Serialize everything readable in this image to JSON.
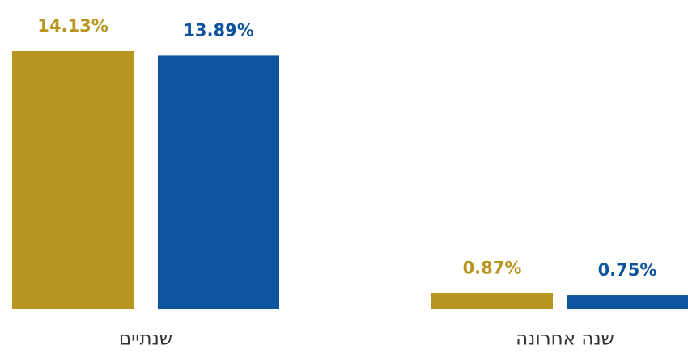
{
  "chart_data": {
    "type": "bar",
    "categories": [
      "שנתיים",
      "שנה אחרונה"
    ],
    "series": [
      {
        "color": "#b8961f",
        "values": [
          14.13,
          0.87
        ],
        "value_labels": [
          "14.13%",
          "0.87%"
        ]
      },
      {
        "color": "#0f539f",
        "values": [
          13.89,
          0.75
        ],
        "value_labels": [
          "13.89%",
          "0.75%"
        ]
      }
    ]
  }
}
